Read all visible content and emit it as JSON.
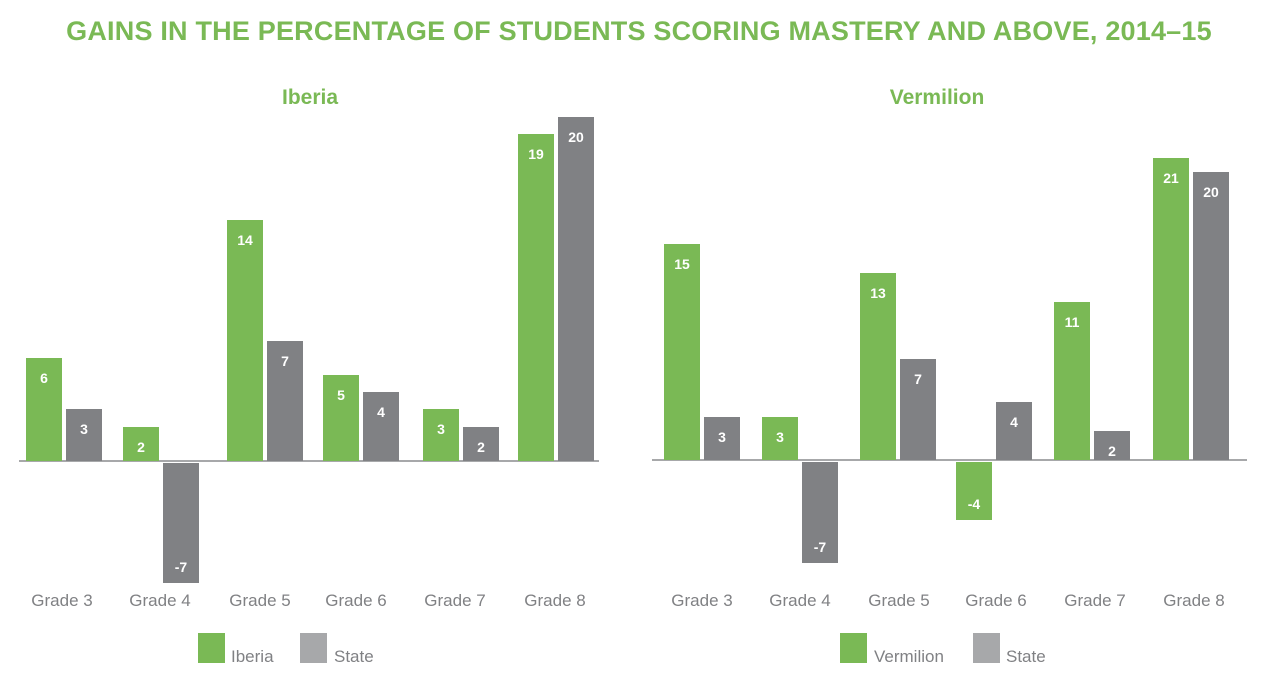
{
  "title": "GAINS IN THE PERCENTAGE OF STUDENTS SCORING MASTERY AND ABOVE, 2014–15",
  "colors": {
    "district": "#7ab955",
    "state": "#808184",
    "legend_state": "#a7a8aa",
    "axis": "#a7a8aa"
  },
  "panels": [
    {
      "subtitle": "Iberia",
      "legend": [
        {
          "label": "Iberia"
        },
        {
          "label": "State"
        }
      ],
      "categories": [
        "Grade 3",
        "Grade 4",
        "Grade 5",
        "Grade 6",
        "Grade 7",
        "Grade 8"
      ]
    },
    {
      "subtitle": "Vermilion",
      "legend": [
        {
          "label": "Vermilion"
        },
        {
          "label": "State"
        }
      ],
      "categories": [
        "Grade 3",
        "Grade 4",
        "Grade 5",
        "Grade 6",
        "Grade 7",
        "Grade 8"
      ]
    }
  ],
  "chart_data": [
    {
      "type": "bar",
      "title": "Iberia",
      "categories": [
        "Grade 3",
        "Grade 4",
        "Grade 5",
        "Grade 6",
        "Grade 7",
        "Grade 8"
      ],
      "series": [
        {
          "name": "Iberia",
          "values": [
            6,
            2,
            14,
            5,
            3,
            19
          ]
        },
        {
          "name": "State",
          "values": [
            3,
            -7,
            7,
            4,
            2,
            20
          ]
        }
      ],
      "xlabel": "",
      "ylabel": "",
      "grid": false,
      "legend_position": "bottom"
    },
    {
      "type": "bar",
      "title": "Vermilion",
      "categories": [
        "Grade 3",
        "Grade 4",
        "Grade 5",
        "Grade 6",
        "Grade 7",
        "Grade 8"
      ],
      "series": [
        {
          "name": "Vermilion",
          "values": [
            15,
            3,
            13,
            -4,
            11,
            21
          ]
        },
        {
          "name": "State",
          "values": [
            3,
            -7,
            7,
            4,
            2,
            20
          ]
        }
      ],
      "xlabel": "",
      "ylabel": "",
      "grid": false,
      "legend_position": "bottom"
    }
  ]
}
